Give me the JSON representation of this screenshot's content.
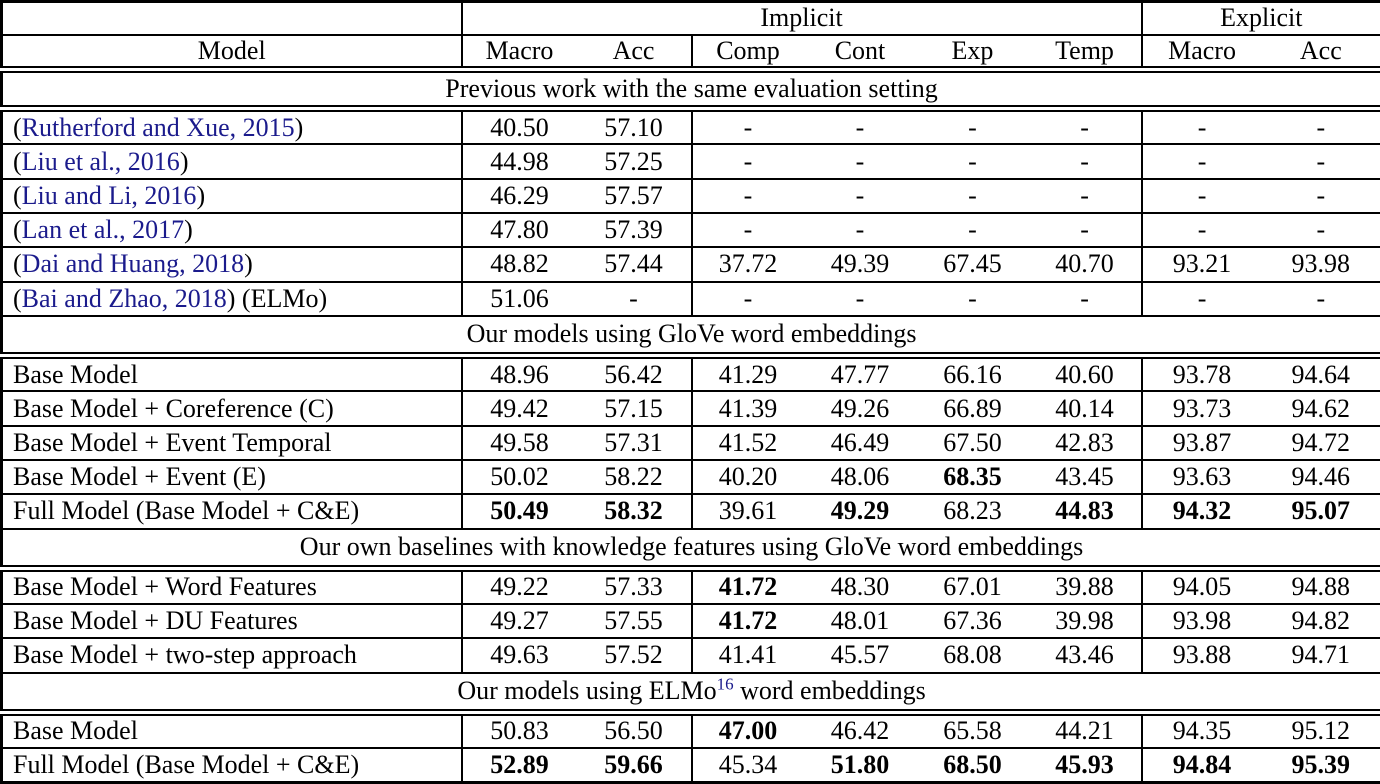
{
  "page": {
    "background": "#ffffff",
    "link_color": "#1b1b8c",
    "text_color": "#000000"
  },
  "table": {
    "group_header": {
      "implicit": "Implicit",
      "explicit": "Explicit"
    },
    "columns": [
      "Model",
      "Macro",
      "Acc",
      "Comp",
      "Cont",
      "Exp",
      "Temp",
      "Macro",
      "Acc"
    ],
    "sections": [
      {
        "title": "Previous work with the same evaluation setting",
        "rows": [
          {
            "model": {
              "pre": "(",
              "link": "Rutherford and Xue, 2015",
              "post": ")"
            },
            "values": [
              "40.50",
              "57.10",
              "-",
              "-",
              "-",
              "-",
              "-",
              "-"
            ],
            "bold": []
          },
          {
            "model": {
              "pre": "(",
              "link": "Liu et al., 2016",
              "post": ")"
            },
            "values": [
              "44.98",
              "57.25",
              "-",
              "-",
              "-",
              "-",
              "-",
              "-"
            ],
            "bold": []
          },
          {
            "model": {
              "pre": "(",
              "link": "Liu and Li, 2016",
              "post": ")"
            },
            "values": [
              "46.29",
              "57.57",
              "-",
              "-",
              "-",
              "-",
              "-",
              "-"
            ],
            "bold": []
          },
          {
            "model": {
              "pre": "(",
              "link": "Lan et al., 2017",
              "post": ")"
            },
            "values": [
              "47.80",
              "57.39",
              "-",
              "-",
              "-",
              "-",
              "-",
              "-"
            ],
            "bold": []
          },
          {
            "model": {
              "pre": "(",
              "link": "Dai and Huang, 2018",
              "post": ")"
            },
            "values": [
              "48.82",
              "57.44",
              "37.72",
              "49.39",
              "67.45",
              "40.70",
              "93.21",
              "93.98"
            ],
            "bold": []
          },
          {
            "model": {
              "pre": "(",
              "link": "Bai and Zhao, 2018",
              "post": ") (ELMo)"
            },
            "values": [
              "51.06",
              "-",
              "-",
              "-",
              "-",
              "-",
              "-",
              "-"
            ],
            "bold": []
          }
        ]
      },
      {
        "title": "Our models using GloVe word embeddings",
        "rows": [
          {
            "model": {
              "text": "Base Model"
            },
            "values": [
              "48.96",
              "56.42",
              "41.29",
              "47.77",
              "66.16",
              "40.60",
              "93.78",
              "94.64"
            ],
            "bold": []
          },
          {
            "model": {
              "text": "Base Model + Coreference (C)"
            },
            "values": [
              "49.42",
              "57.15",
              "41.39",
              "49.26",
              "66.89",
              "40.14",
              "93.73",
              "94.62"
            ],
            "bold": []
          },
          {
            "model": {
              "text": "Base Model + Event Temporal"
            },
            "values": [
              "49.58",
              "57.31",
              "41.52",
              "46.49",
              "67.50",
              "42.83",
              "93.87",
              "94.72"
            ],
            "bold": []
          },
          {
            "model": {
              "text": "Base Model + Event (E)"
            },
            "values": [
              "50.02",
              "58.22",
              "40.20",
              "48.06",
              "68.35",
              "43.45",
              "93.63",
              "94.46"
            ],
            "bold": [
              4
            ]
          },
          {
            "model": {
              "text": "Full Model (Base Model + C&E)"
            },
            "values": [
              "50.49",
              "58.32",
              "39.61",
              "49.29",
              "68.23",
              "44.83",
              "94.32",
              "95.07"
            ],
            "bold": [
              0,
              1,
              3,
              5,
              6,
              7
            ]
          }
        ]
      },
      {
        "title": "Our own baselines with knowledge features using GloVe word embeddings",
        "rows": [
          {
            "model": {
              "text": "Base Model + Word Features"
            },
            "values": [
              "49.22",
              "57.33",
              "41.72",
              "48.30",
              "67.01",
              "39.88",
              "94.05",
              "94.88"
            ],
            "bold": [
              2
            ]
          },
          {
            "model": {
              "text": "Base Model + DU Features"
            },
            "values": [
              "49.27",
              "57.55",
              "41.72",
              "48.01",
              "67.36",
              "39.98",
              "93.98",
              "94.82"
            ],
            "bold": [
              2
            ]
          },
          {
            "model": {
              "text": "Base Model + two-step approach"
            },
            "values": [
              "49.63",
              "57.52",
              "41.41",
              "45.57",
              "68.08",
              "43.46",
              "93.88",
              "94.71"
            ],
            "bold": []
          }
        ]
      },
      {
        "title_parts": [
          {
            "text": "Our models using ELMo"
          },
          {
            "text": "16",
            "sup": true
          },
          {
            "text": " word embeddings"
          }
        ],
        "rows": [
          {
            "model": {
              "text": "Base Model"
            },
            "values": [
              "50.83",
              "56.50",
              "47.00",
              "46.42",
              "65.58",
              "44.21",
              "94.35",
              "95.12"
            ],
            "bold": [
              2
            ]
          },
          {
            "model": {
              "text": "Full Model (Base Model + C&E)"
            },
            "values": [
              "52.89",
              "59.66",
              "45.34",
              "51.80",
              "68.50",
              "45.93",
              "94.84",
              "95.39"
            ],
            "bold": [
              0,
              1,
              3,
              4,
              5,
              6,
              7
            ]
          }
        ]
      }
    ]
  }
}
